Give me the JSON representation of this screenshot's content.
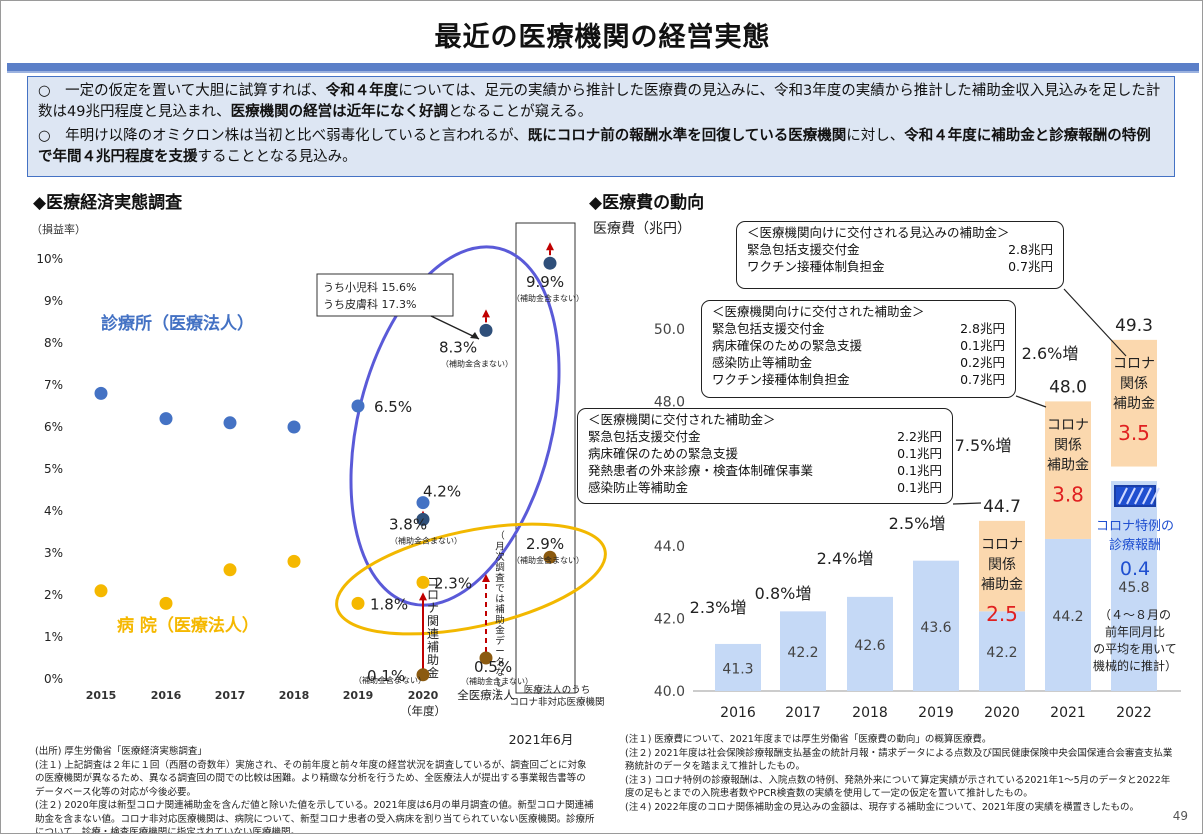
{
  "title": "最近の医療機関の経営実態",
  "summary": {
    "p1": [
      {
        "t": "○　一定の仮定を置いて大胆に試算すれば、",
        "b": false
      },
      {
        "t": "令和４年度",
        "b": true
      },
      {
        "t": "については、足元の実績から推計した医療費の見込みに、令和3年度の実績から推計した補助金収入見込みを足した計数は49兆円程度と見込まれ、",
        "b": false
      },
      {
        "t": "医療機関の経営は近年になく好調",
        "b": true
      },
      {
        "t": "となることが窺える。",
        "b": false
      }
    ],
    "p2": [
      {
        "t": "○　年明け以降のオミクロン株は当初と比べ弱毒化していると言われるが、",
        "b": false
      },
      {
        "t": "既にコロナ前の報酬水準を回復している医療機関",
        "b": true
      },
      {
        "t": "に対し、",
        "b": false
      },
      {
        "t": "令和４年度に補助金と診療報酬の特例で年間４兆円程度を支援",
        "b": true
      },
      {
        "t": "することとなる見込み。",
        "b": false
      }
    ]
  },
  "left_section_title": "◆医療経済実態調査",
  "right_section_title": "◆医療費の動向",
  "colors": {
    "clinic": "#4472c4",
    "hospital": "#f5b800",
    "bar": "#c5d9f6",
    "covid": "#fbd8ae",
    "accent": "#e02020",
    "special_blue": "#1f4fd0"
  },
  "chart_data": [
    {
      "type": "scatter",
      "title": "",
      "ylabel": "（損益率）",
      "ylim": [
        0,
        10
      ],
      "yticks": [
        "0%",
        "1%",
        "2%",
        "3%",
        "4%",
        "5%",
        "6%",
        "7%",
        "8%",
        "9%",
        "10%"
      ],
      "categories": [
        "2015",
        "2016",
        "2017",
        "2018",
        "2019",
        "2020",
        "",
        ""
      ],
      "xlabel": "（年度）",
      "extra_x_labels": [
        "全医療法人",
        "医療法人のうち\nコロナ非対応医療機関"
      ],
      "footer_date": "2021年6月",
      "series": [
        {
          "name": "診療所（医療法人）",
          "points": [
            [
              2015,
              6.8
            ],
            [
              2016,
              6.2
            ],
            [
              2017,
              6.1
            ],
            [
              2018,
              6.0
            ],
            [
              2019,
              6.5
            ],
            [
              2020,
              4.2
            ]
          ]
        },
        {
          "name": "病 院（医療法人）",
          "points": [
            [
              2015,
              2.1
            ],
            [
              2016,
              1.8
            ],
            [
              2017,
              2.6
            ],
            [
              2018,
              2.8
            ],
            [
              2019,
              1.8
            ],
            [
              2020,
              2.3
            ]
          ]
        },
        {
          "name": "診療所（補助金含まない）",
          "points": [
            [
              2020,
              3.8
            ],
            [
              2021,
              8.3
            ],
            [
              2021.5,
              9.9
            ]
          ]
        },
        {
          "name": "病院（補助金含まない）",
          "points": [
            [
              2020,
              0.1
            ],
            [
              2021,
              0.5
            ],
            [
              2021.5,
              2.9
            ]
          ]
        }
      ],
      "labels": {
        "c2019": "6.5%",
        "c2020": "4.2%",
        "c2020n": "3.8%",
        "c_all": "8.3%",
        "c_noncovid": "9.9%",
        "h2019": "1.8%",
        "h2020": "2.3%",
        "h2020n": "0.1%",
        "h_all": "0.5%",
        "h_noncovid": "2.9%",
        "excl_subsidy": "（補助金含まない）",
        "callout1": "うち小児科 15.6%",
        "callout2": "うち皮膚科 17.3%",
        "vertical_subsidy": "コロナ関連補助金",
        "vertical_monthly": "（月次調査では補助金データなし）"
      }
    },
    {
      "type": "bar",
      "title": "",
      "ylabel": "医療費（兆円）",
      "ylim": [
        40,
        50
      ],
      "yticks": [
        "40.0",
        "42.0",
        "44.0",
        "48.0",
        "50.0"
      ],
      "categories": [
        "2016",
        "2017",
        "2018",
        "2019",
        "2020",
        "2021",
        "2022"
      ],
      "series": [
        {
          "name": "",
          "values": [
            41.3,
            42.2,
            42.6,
            43.6,
            42.2,
            44.2,
            45.8
          ]
        },
        {
          "name": "コロナ関係補助金",
          "values": [
            0,
            0,
            0,
            0,
            2.5,
            3.8,
            3.5
          ]
        },
        {
          "name": "コロナ特例の診療報酬",
          "values": [
            0,
            0,
            0,
            0,
            0,
            0,
            0.4
          ]
        }
      ],
      "totals": [
        "",
        "",
        "",
        "",
        "44.7",
        "48.0",
        "49.3"
      ],
      "growth": [
        "2.3%増",
        "0.8%増",
        "2.4%増",
        "2.5%増",
        "7.5%増",
        "2.6%増"
      ],
      "covid_label": "コロナ関係補助金",
      "special_label": "コロナ特例の診療報酬",
      "special_value": "0.4",
      "note_2022": "（４～８月の前年同月比の平均を用いて機械的に推計）"
    }
  ],
  "boxes": {
    "b1": {
      "head": "＜医療機関向けに交付される見込みの補助金＞",
      "rows": [
        [
          "緊急包括支援交付金",
          "2.8兆円"
        ],
        [
          "ワクチン接種体制負担金",
          "0.7兆円"
        ]
      ]
    },
    "b2": {
      "head": "＜医療機関向けに交付された補助金＞",
      "rows": [
        [
          "緊急包括支援交付金",
          "2.8兆円"
        ],
        [
          "病床確保のための緊急支援",
          "0.1兆円"
        ],
        [
          "感染防止等補助金",
          "0.2兆円"
        ],
        [
          "ワクチン接種体制負担金",
          "0.7兆円"
        ]
      ]
    },
    "b3": {
      "head": "＜医療機関に交付された補助金＞",
      "rows": [
        [
          "緊急包括支援交付金",
          "2.2兆円"
        ],
        [
          "病床確保のための緊急支援",
          "0.1兆円"
        ],
        [
          "発熱患者の外来診療・検査体制確保事業",
          "0.1兆円"
        ],
        [
          "感染防止等補助金",
          "0.1兆円"
        ]
      ]
    }
  },
  "notes_left": [
    "(出所) 厚生労働省「医療経済実態調査」",
    "(注１) 上記調査は２年に１回（西暦の奇数年）実施され、その前年度と前々年度の経営状況を調査しているが、調査回ごとに対象の医療機関が異なるため、異なる調査回の間での比較は困難。より精緻な分析を行うため、全医療法人が提出する事業報告書等のデータベース化等の対応が今後必要。",
    "(注２) 2020年度は新型コロナ関連補助金を含んだ値と除いた値を示している。2021年度は6月の単月調査の値。新型コロナ関連補助金を含まない値。コロナ非対応医療機関は、病院について、新型コロナ患者の受入病床を割り当てられていない医療機関。診療所について、診療・検査医療機関に指定されていない医療機関。"
  ],
  "notes_right": [
    "(注１) 医療費について、2021年度までは厚生労働省「医療費の動向」の概算医療費。",
    "(注２) 2021年度は社会保険診療報酬支払基金の統計月報・請求データによる点数及び国民健康保険中央会国保連合会審査支払業務統計のデータを踏まえて推計したもの。",
    "(注３) コロナ特例の診療報酬は、入院点数の特例、発熱外来について算定実績が示されている2021年1～5月のデータと2022年度の足もとまでの入院患者数やPCR検査数の実績を使用して一定の仮定を置いて推計したもの。",
    "(注４) 2022年度のコロナ関係補助金の見込みの金額は、現存する補助金について、2021年度の実績を横置きしたもの。"
  ],
  "page_number": "49"
}
